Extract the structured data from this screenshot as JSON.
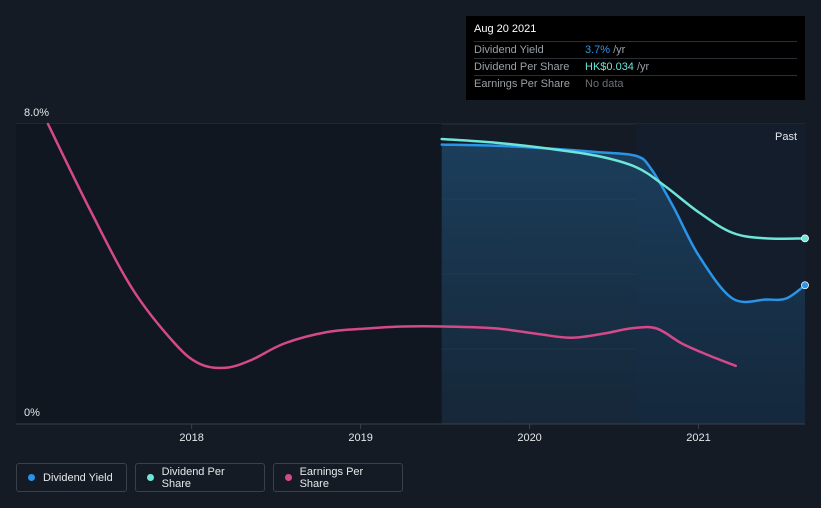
{
  "chart_data": {
    "type": "line",
    "y_axis": {
      "max_label": "8.0%",
      "min_label": "0%",
      "ylim": [
        0,
        8
      ]
    },
    "x_axis": {
      "ticks": [
        "2018",
        "2019",
        "2020",
        "2021"
      ],
      "xlim": [
        2017.15,
        2021.63
      ]
    },
    "past_label": "Past",
    "forecast_start": 2020.63,
    "shaded_start": 2019.48,
    "series": [
      {
        "name": "Dividend Yield",
        "color": "#2a94e8",
        "points": [
          [
            2019.48,
            7.45
          ],
          [
            2019.8,
            7.42
          ],
          [
            2020.1,
            7.35
          ],
          [
            2020.4,
            7.25
          ],
          [
            2020.63,
            7.15
          ],
          [
            2020.72,
            6.8
          ],
          [
            2020.85,
            5.8
          ],
          [
            2021.0,
            4.5
          ],
          [
            2021.2,
            3.35
          ],
          [
            2021.4,
            3.32
          ],
          [
            2021.52,
            3.35
          ],
          [
            2021.63,
            3.7
          ]
        ]
      },
      {
        "name": "Dividend Per Share",
        "color": "#6de5d8",
        "points": [
          [
            2019.48,
            7.6
          ],
          [
            2019.8,
            7.5
          ],
          [
            2020.1,
            7.35
          ],
          [
            2020.4,
            7.15
          ],
          [
            2020.63,
            6.85
          ],
          [
            2020.8,
            6.35
          ],
          [
            2021.0,
            5.65
          ],
          [
            2021.2,
            5.1
          ],
          [
            2021.4,
            4.95
          ],
          [
            2021.63,
            4.95
          ]
        ]
      },
      {
        "name": "Earnings Per Share",
        "color": "#d4498a",
        "points": [
          [
            2017.15,
            8.0
          ],
          [
            2017.4,
            5.7
          ],
          [
            2017.65,
            3.6
          ],
          [
            2017.9,
            2.15
          ],
          [
            2018.05,
            1.6
          ],
          [
            2018.2,
            1.5
          ],
          [
            2018.35,
            1.7
          ],
          [
            2018.55,
            2.15
          ],
          [
            2018.8,
            2.45
          ],
          [
            2019.05,
            2.55
          ],
          [
            2019.25,
            2.6
          ],
          [
            2019.5,
            2.6
          ],
          [
            2019.8,
            2.55
          ],
          [
            2020.05,
            2.4
          ],
          [
            2020.25,
            2.3
          ],
          [
            2020.45,
            2.42
          ],
          [
            2020.6,
            2.55
          ],
          [
            2020.75,
            2.55
          ],
          [
            2020.9,
            2.15
          ],
          [
            2021.05,
            1.85
          ],
          [
            2021.22,
            1.55
          ]
        ]
      }
    ],
    "end_markers": [
      "Dividend Yield",
      "Dividend Per Share"
    ]
  },
  "tooltip": {
    "date": "Aug 20 2021",
    "rows": [
      {
        "label": "Dividend Yield",
        "value": "3.7%",
        "unit": "/yr",
        "color": "#2a94e8"
      },
      {
        "label": "Dividend Per Share",
        "value": "HK$0.034",
        "unit": "/yr",
        "color": "#6de5d8"
      },
      {
        "label": "Earnings Per Share",
        "value": "No data",
        "unit": "",
        "color": "#6b7178"
      }
    ]
  },
  "legend": [
    {
      "label": "Dividend Yield",
      "color": "#2a94e8"
    },
    {
      "label": "Dividend Per Share",
      "color": "#6de5d8"
    },
    {
      "label": "Earnings Per Share",
      "color": "#d4498a"
    }
  ]
}
